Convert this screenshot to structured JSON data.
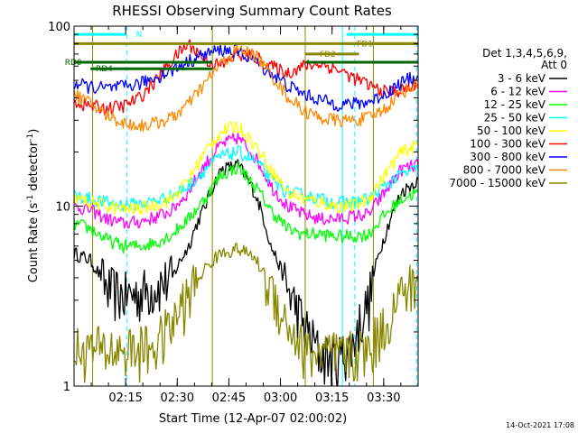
{
  "chart_data": {
    "type": "line",
    "title": "RHESSI Observing Summary Count Rates",
    "xlabel": "Start Time (12-Apr-07 02:00:02)",
    "ylabel_main": "Count Rate (s",
    "ylabel_sup": "-1",
    "ylabel_tail": " detector",
    "ylabel_sup2": "-1",
    "ylabel_end": ")",
    "yscale": "log",
    "xlim": [
      2.0,
      3.667
    ],
    "ylim": [
      1,
      100
    ],
    "x_ticks": [
      {
        "x": 2.25,
        "label": "02:15"
      },
      {
        "x": 2.5,
        "label": "02:30"
      },
      {
        "x": 2.75,
        "label": "02:45"
      },
      {
        "x": 3.0,
        "label": "03:00"
      },
      {
        "x": 3.25,
        "label": "03:15"
      },
      {
        "x": 3.5,
        "label": "03:30"
      }
    ],
    "y_ticks": [
      {
        "y": 1,
        "label": "1"
      },
      {
        "y": 10,
        "label": "10"
      },
      {
        "y": 100,
        "label": "100"
      }
    ],
    "legend_header": [
      "Det 1,3,4,5,6,9,",
      "Att 0"
    ],
    "legend_position": "right",
    "series": [
      {
        "name": "3 - 6 keV",
        "color": "#000000",
        "values": [
          5.5,
          5,
          3.5,
          3.2,
          3.3,
          3.6,
          4,
          6,
          10,
          16,
          17,
          12,
          6,
          3.5,
          2.2,
          1.5,
          1.4,
          1.7,
          3,
          7,
          12,
          14
        ]
      },
      {
        "name": "6 - 12 keV",
        "color": "#ff00ff",
        "values": [
          10,
          9.5,
          8.5,
          8,
          8.2,
          8.7,
          9.5,
          12,
          17,
          22,
          24,
          19,
          13,
          10,
          9,
          8.5,
          8.5,
          8.8,
          9,
          12,
          16,
          17
        ]
      },
      {
        "name": "12 - 25 keV",
        "color": "#00ff00",
        "values": [
          8,
          7.5,
          6.5,
          6,
          6,
          6.3,
          7,
          8.5,
          11,
          15,
          16.5,
          13,
          9.5,
          7.5,
          7,
          7,
          6.8,
          6.8,
          7,
          9,
          11,
          12
        ]
      },
      {
        "name": "25 - 50 keV",
        "color": "#00ffff",
        "values": [
          11.5,
          11,
          10.5,
          10.2,
          10.3,
          10.7,
          11.5,
          13,
          16,
          19,
          20,
          18,
          14,
          12,
          11.5,
          11,
          10.5,
          10.5,
          11,
          13,
          15,
          16
        ]
      },
      {
        "name": "50 - 100 keV",
        "color": "#ffff00",
        "values": [
          11,
          10.5,
          10,
          9.6,
          9.7,
          10.2,
          11,
          14,
          20,
          26,
          28,
          22,
          16,
          12,
          11,
          10.5,
          10,
          10,
          11,
          15,
          20,
          22
        ]
      },
      {
        "name": "100 - 300 keV",
        "color": "#ff0000",
        "values": [
          38,
          36,
          35,
          36,
          40,
          50,
          65,
          80,
          65,
          60,
          70,
          68,
          60,
          55,
          60,
          62,
          58,
          52,
          47,
          43,
          44,
          47
        ]
      },
      {
        "name": "300 - 800 keV",
        "color": "#0000ff",
        "values": [
          48,
          46,
          45,
          46,
          48,
          52,
          57,
          64,
          70,
          74,
          72,
          65,
          55,
          47,
          42,
          39,
          37,
          37,
          38,
          42,
          49,
          53
        ]
      },
      {
        "name": "800 - 7000 keV",
        "color": "#ff8800",
        "values": [
          42,
          37,
          32,
          29,
          28,
          29,
          31,
          37,
          48,
          62,
          74,
          70,
          54,
          41,
          34,
          31,
          30,
          30,
          31,
          35,
          43,
          48
        ]
      },
      {
        "name": "7000 - 15000 keV",
        "color": "#888800",
        "values": [
          1.6,
          1.6,
          1.6,
          1.6,
          1.6,
          1.7,
          2.2,
          3.2,
          4.5,
          5.5,
          5.8,
          5.2,
          3.5,
          2.2,
          1.6,
          1.5,
          1.5,
          1.5,
          1.6,
          2.2,
          3.3,
          3.8
        ]
      }
    ],
    "bars": [
      {
        "label": "N",
        "color": "#00ffff",
        "y": 90,
        "x_start": 2.0,
        "x_end": 2.252,
        "label_x": 2.3
      },
      {
        "label": "",
        "color": "#00ffff",
        "y": 90,
        "x_start": 3.32,
        "x_end": 3.667,
        "label_x": null
      },
      {
        "label": "",
        "color": "#888800",
        "y": 80,
        "x_start": 2.0,
        "x_end": 3.667,
        "label_x": null
      },
      {
        "label": "FD1",
        "color": "#888800",
        "y": 80,
        "x_start": 3.3,
        "x_end": 3.667,
        "label_x": 3.37
      },
      {
        "label": "FD2",
        "color": "#888800",
        "y": 70,
        "x_start": 3.12,
        "x_end": 3.38,
        "label_x": 3.19
      },
      {
        "label": "RD0",
        "color": "#006600",
        "y": 63,
        "x_start": 2.0,
        "x_end": 2.67,
        "label_x": 1.955
      },
      {
        "label": "",
        "color": "#006600",
        "y": 63,
        "x_start": 3.12,
        "x_end": 3.667,
        "label_x": null
      },
      {
        "label": "RD4",
        "color": "#006600",
        "y": 58,
        "x_start": 2.08,
        "x_end": 2.67,
        "label_x": 2.105
      }
    ],
    "vlines": [
      {
        "x": 2.09,
        "color": "#888800",
        "dashed": false
      },
      {
        "x": 2.255,
        "color": "#00ffff",
        "dashed": true
      },
      {
        "x": 2.67,
        "color": "#888800",
        "dashed": false
      },
      {
        "x": 3.12,
        "color": "#888800",
        "dashed": false
      },
      {
        "x": 3.3,
        "color": "#00ffff",
        "dashed": false
      },
      {
        "x": 3.36,
        "color": "#00ffff",
        "dashed": true
      },
      {
        "x": 3.45,
        "color": "#888800",
        "dashed": false
      },
      {
        "x": 3.66,
        "color": "#00ffff",
        "dashed": true
      }
    ]
  },
  "footer_timestamp": "14-Oct-2021 17:08"
}
